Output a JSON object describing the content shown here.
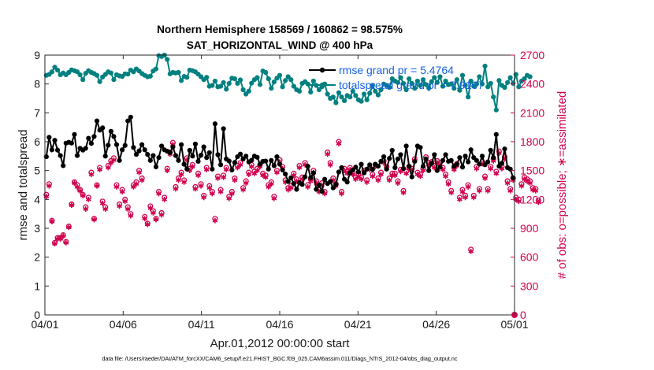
{
  "chart_data": {
    "type": "line",
    "title": "Northern Hemisphere 158569 / 160862 = 98.575%",
    "subtitle": "SAT_HORIZONTAL_WIND @ 400 hPa",
    "xlabel": "Apr.01,2012 00:00:00 start",
    "ylabel": "rmse and totalspread",
    "ylabel_right": "# of obs: o=possible; ∗=assimilated",
    "footnote": "data file: /Users/raeder/DAI/ATM_forcXX/CAM6_setup/f.e21.FHIST_BGC.f09_025.CAM6assim.011/Diags_NTrS_2012-04/obs_diag_output.nc",
    "x_ticks": [
      "04/01",
      "04/06",
      "04/11",
      "04/16",
      "04/21",
      "04/26",
      "05/01"
    ],
    "xlim": [
      0,
      30
    ],
    "ylim": [
      0,
      9
    ],
    "y_ticks": [
      "0",
      "1",
      "2",
      "3",
      "4",
      "5",
      "6",
      "7",
      "8",
      "9"
    ],
    "ylim_right": [
      0,
      2700
    ],
    "y_ticks_right": [
      "0",
      "300",
      "600",
      "900",
      "1200",
      "1500",
      "1800",
      "2100",
      "2400",
      "2700"
    ],
    "grid": false,
    "legend_position": "top-right",
    "colors": {
      "rmse": "#000000",
      "spread": "#00807f",
      "obs": "#d1004f",
      "legend_text": "#1560e6"
    },
    "series": [
      {
        "name": "rmse grand pr = 5.4764",
        "axis": "left",
        "marker": "asterisk",
        "values": [
          5.48,
          6.15,
          5.72,
          6.05,
          5.71,
          5.52,
          5.17,
          5.95,
          5.98,
          5.95,
          6.25,
          5.52,
          5.77,
          5.71,
          5.77,
          6.12,
          5.94,
          6.18,
          6.72,
          6.4,
          6.48,
          5.5,
          5.88,
          6.36,
          6.18,
          5.9,
          5.35,
          5.72,
          5.87,
          6.72,
          6.85,
          5.8,
          5.56,
          5.68,
          5.9,
          5.72,
          5.56,
          5.35,
          5.52,
          5.13,
          5.45,
          5.85,
          5.72,
          5.67,
          5.62,
          5.82,
          5.52,
          5.35,
          5.9,
          5.22,
          5.05,
          5.7,
          5.5,
          5.92,
          5.32,
          5.53,
          5.82,
          5.45,
          5.62,
          5.05,
          6.62,
          5.55,
          5.2,
          6.45,
          5.4,
          5.33,
          5.02,
          5.28,
          5.48,
          5.57,
          5.4,
          5.5,
          5.3,
          5.36,
          5.5,
          5.46,
          5.22,
          5.32,
          5.33,
          5.05,
          5.35,
          5.17,
          5.48,
          5.22,
          5.02,
          4.88,
          4.62,
          4.75,
          4.55,
          4.35,
          4.58,
          4.52,
          4.78,
          5.15,
          4.75,
          4.92,
          4.35,
          4.5,
          4.28,
          4.7,
          4.55,
          4.62,
          4.4,
          4.52,
          4.95,
          5.1,
          4.7,
          4.6,
          4.92,
          5.02,
          5.12,
          4.95,
          5.22,
          4.92,
          5.05,
          5.2,
          5.04,
          5.22,
          5.15,
          5.32,
          5.48,
          5.05,
          5.42,
          5.7,
          5.1,
          5.4,
          5.55,
          5.07,
          5.85,
          5.15,
          4.78,
          5.32,
          5.85,
          5.8,
          5.15,
          5.4,
          5.0,
          5.25,
          5.55,
          5.0,
          5.12,
          5.35,
          5.55,
          5.32,
          5.35,
          5.15,
          5.22,
          5.45,
          5.12,
          5.5,
          5.3,
          5.72,
          5.45,
          5.35,
          5.22,
          5.5,
          5.2,
          5.3,
          5.7,
          5.45,
          6.25,
          5.15,
          5.25,
          5.75,
          5.1,
          5.05,
          4.75
        ]
      },
      {
        "name": "totalspread grand pr = 7.9167",
        "axis": "left",
        "marker": "circle",
        "values": [
          8.3,
          8.33,
          8.42,
          8.58,
          8.48,
          8.32,
          8.38,
          8.32,
          8.4,
          8.49,
          8.46,
          8.42,
          8.32,
          8.15,
          8.37,
          8.46,
          8.4,
          8.36,
          8.3,
          8.08,
          8.24,
          8.33,
          8.42,
          8.38,
          8.15,
          8.32,
          8.28,
          8.26,
          8.35,
          8.34,
          8.48,
          8.42,
          8.52,
          8.45,
          8.36,
          8.3,
          8.25,
          8.27,
          8.45,
          8.52,
          8.98,
          8.95,
          9.0,
          8.85,
          8.35,
          8.4,
          8.38,
          8.4,
          8.12,
          8.26,
          8.23,
          8.48,
          8.46,
          8.42,
          8.34,
          8.25,
          8.15,
          8.23,
          7.92,
          7.95,
          8.1,
          7.9,
          7.92,
          8.05,
          7.82,
          8.02,
          8.2,
          8.18,
          8.02,
          8.14,
          7.8,
          7.65,
          7.75,
          8.03,
          8.15,
          8.22,
          7.98,
          8.45,
          8.4,
          8.18,
          7.85,
          8.07,
          8.2,
          8.3,
          7.9,
          8.12,
          8.25,
          8.15,
          7.92,
          7.8,
          7.75,
          8.02,
          8.08,
          8.0,
          7.72,
          8.1,
          7.95,
          7.8,
          7.9,
          8.0,
          7.65,
          7.5,
          7.55,
          7.35,
          7.7,
          7.55,
          7.42,
          7.6,
          7.55,
          7.75,
          7.6,
          7.45,
          7.4,
          7.65,
          7.45,
          7.68,
          7.95,
          7.75,
          7.62,
          7.8,
          8.0,
          7.95,
          7.88,
          8.18,
          8.1,
          8.05,
          8.22,
          8.02,
          7.8,
          8.18,
          8.02,
          7.85,
          8.1,
          7.95,
          8.15,
          7.98,
          7.86,
          8.08,
          8.22,
          8.05,
          8.25,
          7.92,
          8.1,
          7.98,
          8.0,
          7.85,
          8.15,
          7.78,
          8.3,
          7.95,
          7.55,
          8.1,
          7.92,
          8.0,
          8.25,
          8.0,
          8.62,
          7.9,
          8.02,
          7.55,
          7.1,
          8.12,
          7.95,
          7.88,
          8.05,
          8.22,
          8.02,
          8.33,
          7.9,
          8.1,
          8.18,
          8.3,
          8.25
        ]
      },
      {
        "name": "# of obs possible",
        "axis": "right",
        "marker": "circle",
        "values": [
          1250,
          1360,
          980,
          750,
          800,
          800,
          830,
          760,
          920,
          1150,
          1380,
          1350,
          1300,
          1250,
          1120,
          1220,
          1480,
          1000,
          1350,
          1530,
          1180,
          1120,
          1550,
          1600,
          1630,
          1350,
          1150,
          1300,
          1200,
          1120,
          1050,
          1350,
          1380,
          1500,
          1420,
          1020,
          950,
          1130,
          1080,
          1000,
          1280,
          1060,
          1220,
          1520,
          1690,
          1790,
          1330,
          1420,
          1480,
          1400,
          1630,
          1520,
          1560,
          1330,
          1470,
          1360,
          1240,
          1530,
          1340,
          1280,
          1000,
          1440,
          1300,
          1450,
          1530,
          1230,
          1280,
          1420,
          1550,
          1580,
          1320,
          1390,
          1480,
          1560,
          1490,
          1520,
          1560,
          1470,
          1450,
          1350,
          1380,
          1230,
          1500,
          1610,
          1540,
          1400,
          1320,
          1340,
          1470,
          1410,
          1550,
          1430,
          1580,
          1350,
          1410,
          1500,
          1390,
          1300,
          1370,
          1280,
          1690,
          1580,
          1420,
          1360,
          1800,
          1280,
          1520,
          1490,
          1530,
          1480,
          1430,
          1460,
          1430,
          1500,
          1400,
          1530,
          1460,
          1560,
          1420,
          1480,
          1600,
          1540,
          1420,
          1470,
          1470,
          1390,
          1510,
          1290,
          1490,
          1540,
          1520,
          1620,
          1480,
          1460,
          1520,
          1640,
          1580,
          1590,
          1550,
          1600,
          1580,
          1530,
          1460,
          1380,
          1290,
          1530,
          1570,
          1220,
          1300,
          1240,
          1350,
          680,
          1240,
          1540,
          1310,
          1590,
          1440,
          1310,
          1540,
          1620,
          1490,
          1700,
          1540,
          1640,
          1390,
          1310,
          1420,
          1220,
          1200,
          1360,
          1430,
          1410,
          1390,
          1320,
          1310,
          1190
        ]
      },
      {
        "name": "# of obs assimilated",
        "axis": "right",
        "marker": "asterisk",
        "values": [
          1230,
          1340,
          970,
          740,
          790,
          790,
          820,
          750,
          910,
          1140,
          1370,
          1330,
          1290,
          1240,
          1100,
          1200,
          1460,
          990,
          1340,
          1510,
          1160,
          1100,
          1530,
          1580,
          1610,
          1330,
          1130,
          1280,
          1180,
          1100,
          1030,
          1330,
          1360,
          1480,
          1400,
          1000,
          940,
          1110,
          1060,
          990,
          1260,
          1040,
          1200,
          1500,
          1670,
          1770,
          1310,
          1400,
          1460,
          1380,
          1610,
          1500,
          1540,
          1310,
          1450,
          1340,
          1220,
          1510,
          1320,
          1260,
          980,
          1420,
          1280,
          1430,
          1510,
          1210,
          1260,
          1400,
          1530,
          1560,
          1300,
          1370,
          1460,
          1540,
          1470,
          1500,
          1540,
          1450,
          1430,
          1330,
          1360,
          1210,
          1480,
          1590,
          1520,
          1380,
          1300,
          1320,
          1450,
          1390,
          1530,
          1410,
          1560,
          1330,
          1390,
          1480,
          1370,
          1280,
          1350,
          1260,
          1670,
          1560,
          1400,
          1340,
          1780,
          1260,
          1500,
          1470,
          1510,
          1460,
          1410,
          1440,
          1410,
          1480,
          1380,
          1510,
          1440,
          1540,
          1400,
          1460,
          1580,
          1520,
          1400,
          1450,
          1450,
          1370,
          1490,
          1270,
          1470,
          1520,
          1500,
          1600,
          1460,
          1440,
          1500,
          1620,
          1560,
          1570,
          1530,
          1580,
          1560,
          1510,
          1440,
          1360,
          1270,
          1510,
          1550,
          1200,
          1280,
          1220,
          1330,
          660,
          1220,
          1520,
          1290,
          1570,
          1420,
          1290,
          1520,
          1600,
          1470,
          1680,
          1520,
          1620,
          1370,
          1290,
          1400,
          1200,
          1180,
          1340,
          1410,
          1390,
          1370,
          1300,
          1290,
          1170
        ]
      }
    ]
  }
}
